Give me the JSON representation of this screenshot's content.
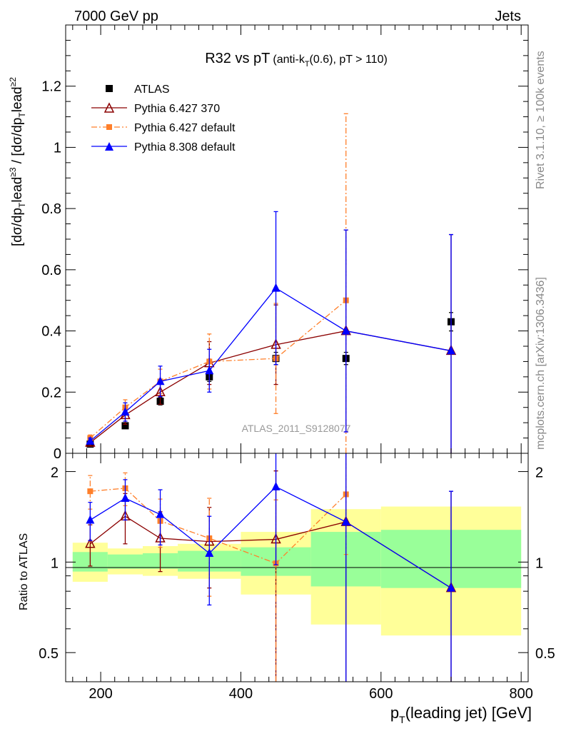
{
  "header": {
    "left": "7000 GeV pp",
    "right": "Jets"
  },
  "side_text": {
    "rivet": "Rivet 3.1.10, ≥ 100k events",
    "mcplots": "mcplots.cern.ch [arXiv:1306.3436]"
  },
  "chart_data": [
    {
      "panel": "main",
      "type": "scatter",
      "title": "R32 vs pT",
      "title_detail": "(anti-k",
      "title_detail_sub": "T",
      "title_detail_tail": "(0.6), pT > 110)",
      "ylabel": "[dσ/dp",
      "ylabel_full": "[dσ/dpTlead]≥3 / [dσ/dpTlead]≥2",
      "watermark": "ATLAS_2011_S9128077",
      "xlim": [
        150,
        810
      ],
      "ylim": [
        0,
        1.4
      ],
      "y_ticks": [
        0,
        0.2,
        0.4,
        0.6,
        0.8,
        1,
        1.2
      ],
      "y_tick_labels": [
        "0",
        "0.2",
        "0.4",
        "0.6",
        "0.8",
        "1",
        "1.2"
      ],
      "series": [
        {
          "name": "ATLAS",
          "color": "#000000",
          "marker": "square",
          "line": "none",
          "x": [
            185,
            235,
            285,
            355,
            450,
            550,
            700
          ],
          "y": [
            0.03,
            0.09,
            0.17,
            0.25,
            0.31,
            0.31,
            0.43
          ],
          "err": [
            0.005,
            0.008,
            0.012,
            0.015,
            0.02,
            0.02,
            0.03
          ]
        },
        {
          "name": "Pythia 6.427 370",
          "color": "#8b0000",
          "marker": "open-triangle",
          "line": "solid",
          "x": [
            185,
            235,
            285,
            355,
            450,
            550,
            700
          ],
          "y": [
            0.035,
            0.125,
            0.2,
            0.295,
            0.355,
            0.4,
            0.335
          ],
          "err": [
            0.01,
            0.03,
            0.04,
            0.07,
            0.13,
            0.33,
            0.38
          ]
        },
        {
          "name": "Pythia 6.427 default",
          "color": "#ff7f2a",
          "marker": "filled-square",
          "line": "dashdot",
          "x": [
            185,
            235,
            285,
            355,
            450,
            550
          ],
          "y": [
            0.05,
            0.15,
            0.235,
            0.3,
            0.31,
            0.5
          ],
          "err": [
            0.01,
            0.025,
            0.04,
            0.09,
            0.18,
            0.61
          ]
        },
        {
          "name": "Pythia 8.308 default",
          "color": "#0000ff",
          "marker": "filled-triangle",
          "line": "solid",
          "x": [
            185,
            235,
            285,
            355,
            450,
            550,
            700
          ],
          "y": [
            0.04,
            0.135,
            0.235,
            0.27,
            0.54,
            0.4,
            0.335
          ],
          "err": [
            0.01,
            0.03,
            0.05,
            0.07,
            0.25,
            0.33,
            0.38
          ]
        }
      ]
    },
    {
      "panel": "ratio",
      "type": "scatter",
      "ylabel": "Ratio to ATLAS",
      "xlabel": "p",
      "xlabel_sub": "T",
      "xlabel_tail": "(leading jet) [GeV]",
      "xlim": [
        150,
        810
      ],
      "ylim": [
        0.4,
        2.3
      ],
      "y_scale": "log",
      "x_ticks": [
        200,
        400,
        600,
        800
      ],
      "x_tick_labels": [
        "200",
        "400",
        "600",
        "800"
      ],
      "y_ticks": [
        0.5,
        1,
        2
      ],
      "y_tick_labels": [
        "0.5",
        "1",
        "2"
      ],
      "bands": {
        "bins": [
          [
            160,
            210
          ],
          [
            210,
            260
          ],
          [
            260,
            310
          ],
          [
            310,
            400
          ],
          [
            400,
            500
          ],
          [
            500,
            600
          ],
          [
            600,
            800
          ]
        ],
        "inner": [
          [
            0.93,
            1.08
          ],
          [
            0.95,
            1.06
          ],
          [
            0.95,
            1.07
          ],
          [
            0.93,
            1.09
          ],
          [
            0.9,
            1.12
          ],
          [
            0.83,
            1.26
          ],
          [
            0.82,
            1.28
          ]
        ],
        "outer": [
          [
            0.86,
            1.16
          ],
          [
            0.91,
            1.11
          ],
          [
            0.9,
            1.13
          ],
          [
            0.88,
            1.15
          ],
          [
            0.78,
            1.26
          ],
          [
            0.62,
            1.5
          ],
          [
            0.57,
            1.53
          ]
        ],
        "inner_color": "#99ff99",
        "outer_color": "#ffff99"
      },
      "series": [
        {
          "name": "Pythia 6.427 370",
          "color": "#8b0000",
          "marker": "open-triangle",
          "line": "solid",
          "x": [
            185,
            235,
            285,
            355,
            450,
            550,
            700
          ],
          "y": [
            1.15,
            1.42,
            1.2,
            1.17,
            1.19,
            1.36,
            0.82
          ],
          "err": [
            0.18,
            0.27,
            0.27,
            0.35,
            0.82,
            1.0,
            0.9
          ]
        },
        {
          "name": "Pythia 6.427 default",
          "color": "#ff7f2a",
          "marker": "filled-square",
          "line": "dashdot",
          "x": [
            185,
            235,
            285,
            355,
            450,
            550
          ],
          "y": [
            1.72,
            1.76,
            1.37,
            1.2,
            0.99,
            1.68
          ],
          "err": [
            0.22,
            0.22,
            0.25,
            0.43,
            0.62,
            0.62
          ]
        },
        {
          "name": "Pythia 8.308 default",
          "color": "#0000ff",
          "marker": "filled-triangle",
          "line": "solid",
          "x": [
            185,
            235,
            285,
            355,
            450,
            550,
            700
          ],
          "y": [
            1.38,
            1.63,
            1.44,
            1.07,
            1.78,
            1.36,
            0.82
          ],
          "err": [
            0.2,
            0.25,
            0.3,
            0.35,
            0.8,
            1.0,
            0.9
          ]
        }
      ]
    }
  ]
}
